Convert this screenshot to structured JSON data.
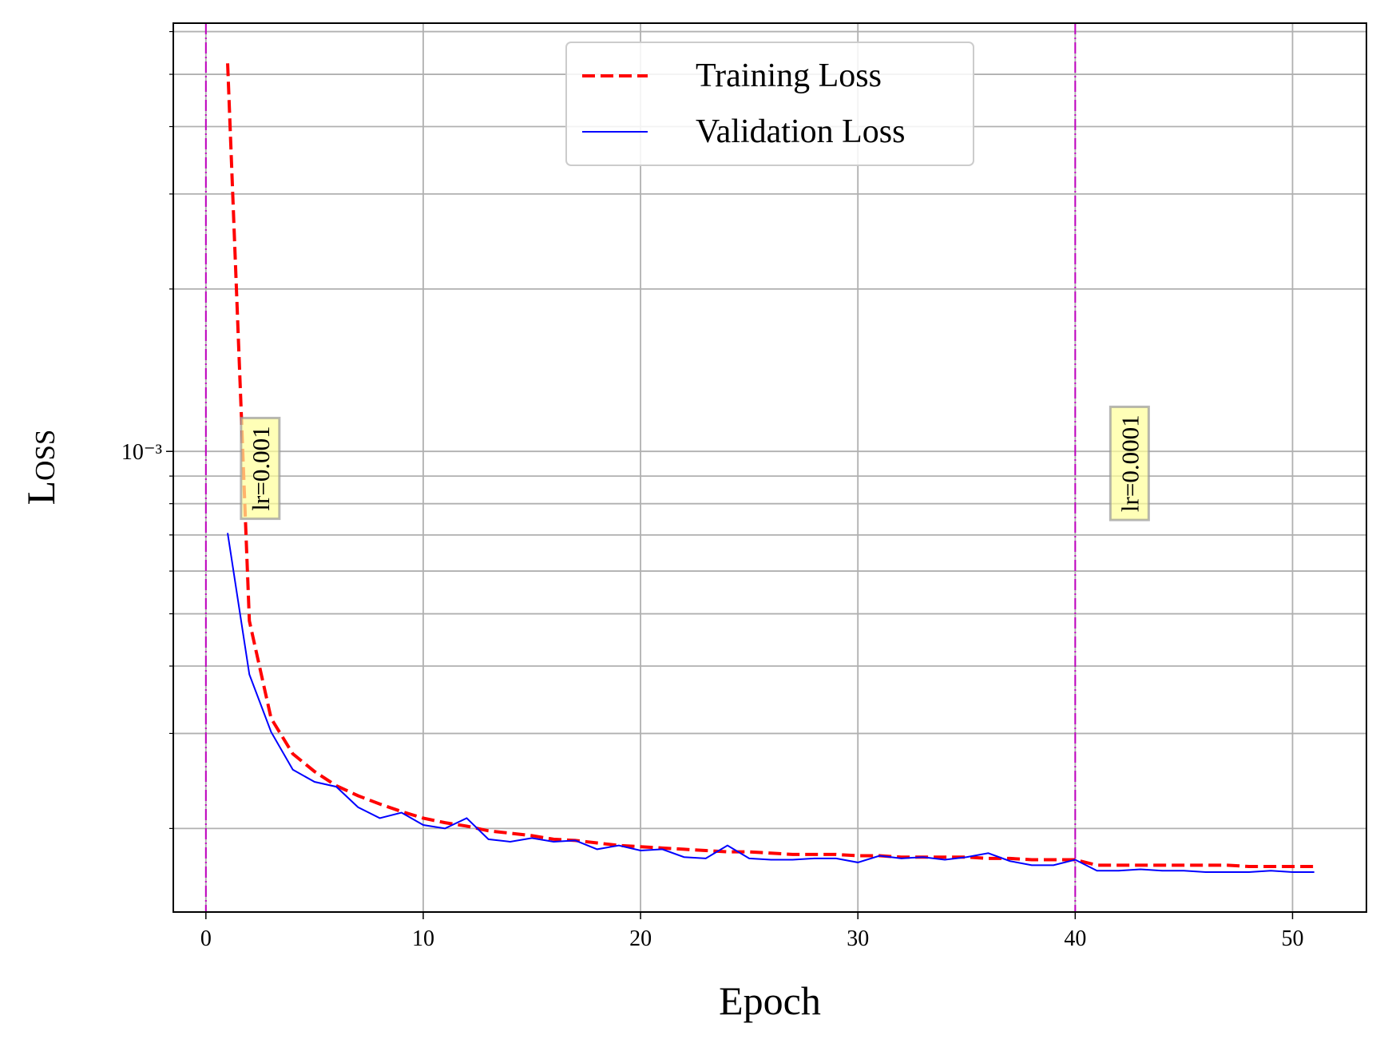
{
  "chart_data": {
    "type": "line",
    "x_label": "Epoch",
    "y_label": "Loss",
    "xlim": [
      -1.5,
      53.4
    ],
    "xticks": [
      0,
      10,
      20,
      30,
      40,
      50
    ],
    "ylim": [
      0.00014,
      0.00622
    ],
    "yscale": "log",
    "yticks": [
      {
        "value": 0.001,
        "label": "10⁻³"
      }
    ],
    "yminor_ticks": [
      0.0002,
      0.0003,
      0.0004,
      0.0005,
      0.0006,
      0.0007,
      0.0008,
      0.0009,
      0.002,
      0.003,
      0.004,
      0.005,
      0.006
    ],
    "grid": true,
    "legend_position": "upper center",
    "x": [
      1,
      2,
      3,
      4,
      5,
      6,
      7,
      8,
      9,
      10,
      11,
      12,
      13,
      14,
      15,
      16,
      17,
      18,
      19,
      20,
      21,
      22,
      23,
      24,
      25,
      26,
      27,
      28,
      29,
      30,
      31,
      32,
      33,
      34,
      35,
      36,
      37,
      38,
      39,
      40,
      41,
      42,
      43,
      44,
      45,
      46,
      47,
      48,
      49,
      50,
      51
    ],
    "series": [
      {
        "name": "Training Loss",
        "color": "#ff0000",
        "linestyle": "dashed",
        "values": [
          0.00524,
          0.000485,
          0.00032,
          0.000275,
          0.000255,
          0.00024,
          0.00023,
          0.000222,
          0.000215,
          0.000209,
          0.000205,
          0.000202,
          0.000198,
          0.000196,
          0.000194,
          0.000191,
          0.00019,
          0.000188,
          0.000186,
          0.000185,
          0.000184,
          0.000183,
          0.000182,
          0.000181,
          0.000181,
          0.00018,
          0.000179,
          0.000179,
          0.000179,
          0.000178,
          0.000178,
          0.000177,
          0.000177,
          0.000177,
          0.000177,
          0.000176,
          0.000176,
          0.000175,
          0.000175,
          0.000175,
          0.000171,
          0.000171,
          0.000171,
          0.000171,
          0.000171,
          0.000171,
          0.000171,
          0.00017,
          0.00017,
          0.00017,
          0.00017
        ]
      },
      {
        "name": "Validation Loss",
        "color": "#0000ff",
        "linestyle": "solid",
        "values": [
          0.000706,
          0.000386,
          0.000302,
          0.000257,
          0.000244,
          0.000239,
          0.000219,
          0.000209,
          0.000214,
          0.000203,
          0.0002,
          0.000209,
          0.000191,
          0.000189,
          0.000192,
          0.000189,
          0.00019,
          0.000183,
          0.000186,
          0.000182,
          0.000183,
          0.000177,
          0.000176,
          0.000186,
          0.000176,
          0.000175,
          0.000175,
          0.000176,
          0.000176,
          0.000173,
          0.000178,
          0.000176,
          0.000177,
          0.000175,
          0.000177,
          0.00018,
          0.000174,
          0.000171,
          0.000171,
          0.000175,
          0.000167,
          0.000167,
          0.000168,
          0.000167,
          0.000167,
          0.000166,
          0.000166,
          0.000166,
          0.000167,
          0.000166,
          0.000166
        ]
      }
    ],
    "vlines": [
      {
        "x": 0,
        "color": "#bf00bf"
      },
      {
        "x": 40,
        "color": "#bf00bf"
      }
    ],
    "annotations": [
      {
        "text": "lr=0.001",
        "x": 2.5,
        "y": 0.00093
      },
      {
        "text": "lr=0.0001",
        "x": 42.5,
        "y": 0.00095
      }
    ]
  }
}
